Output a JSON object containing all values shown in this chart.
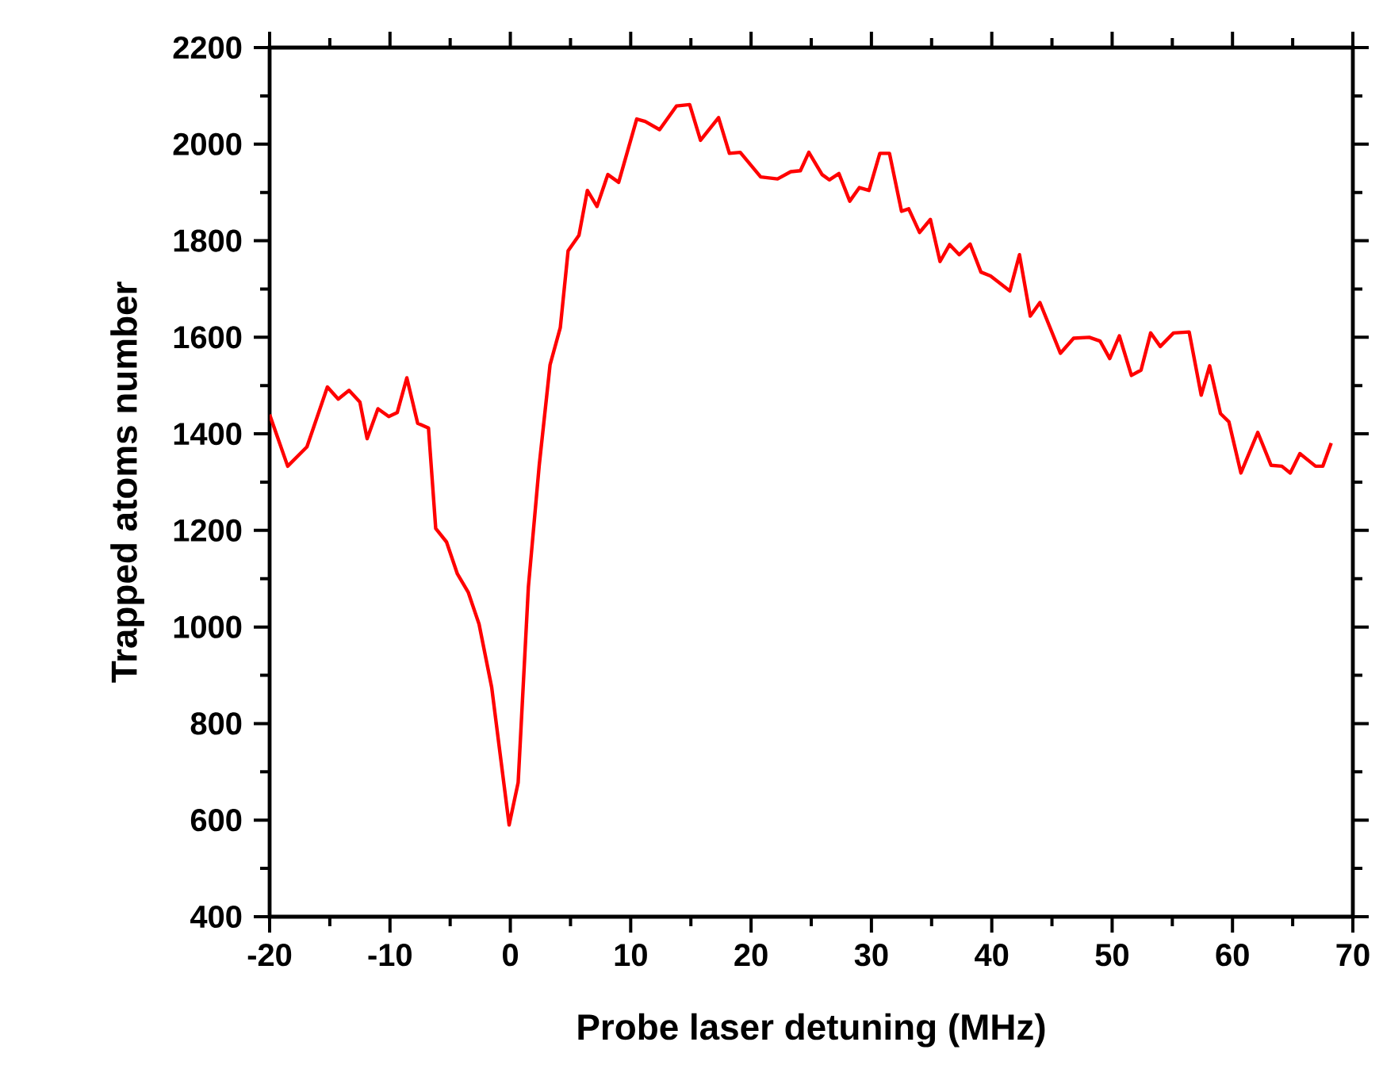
{
  "chart_data": {
    "type": "line",
    "xlabel": "Probe laser detuning (MHz)",
    "ylabel": "Trapped atoms number",
    "x": [
      -20,
      -18.5,
      -16.9,
      -15.2,
      -14.3,
      -13.4,
      -12.5,
      -11.9,
      -11,
      -10.1,
      -9.4,
      -8.6,
      -7.7,
      -6.8,
      -6.2,
      -5.3,
      -4.4,
      -3.5,
      -2.6,
      -1.55,
      -0.1,
      0.65,
      1.5,
      2.4,
      3.3,
      4.15,
      4.8,
      5.7,
      6.4,
      7.2,
      8.1,
      9.0,
      10.5,
      11.2,
      12.4,
      13.8,
      14.9,
      15.8,
      17.3,
      18.2,
      19.1,
      20.8,
      22.2,
      23.3,
      24.1,
      24.8,
      25.9,
      26.5,
      27.3,
      28.2,
      29.0,
      29.8,
      30.7,
      31.5,
      32.5,
      33.1,
      34.0,
      34.9,
      35.7,
      36.5,
      37.3,
      38.2,
      39.1,
      39.9,
      41.5,
      42.3,
      43.2,
      44.0,
      45.7,
      46.8,
      48.1,
      49.0,
      49.8,
      50.6,
      51.6,
      52.4,
      53.2,
      54.0,
      55.1,
      56.4,
      57.4,
      58.1,
      59.0,
      59.7,
      60.7,
      62.1,
      63.2,
      64.1,
      64.8,
      65.6,
      66.9,
      67.5,
      68.2
    ],
    "series": [
      {
        "color": "#ff0000",
        "values": [
          1440,
          1333,
          1373,
          1497,
          1472,
          1490,
          1466,
          1390,
          1452,
          1436,
          1444,
          1516,
          1422,
          1412,
          1204,
          1176,
          1110,
          1072,
          1006,
          875,
          590,
          678,
          1083,
          1335,
          1543,
          1620,
          1779,
          1811,
          1904,
          1871,
          1937,
          1921,
          2052,
          2047,
          2030,
          2079,
          2082,
          2008,
          2055,
          1981,
          1983,
          1932,
          1928,
          1943,
          1945,
          1983,
          1937,
          1926,
          1939,
          1882,
          1910,
          1904,
          1981,
          1981,
          1861,
          1866,
          1817,
          1844,
          1757,
          1792,
          1771,
          1793,
          1735,
          1727,
          1696,
          1771,
          1644,
          1672,
          1567,
          1598,
          1600,
          1592,
          1556,
          1603,
          1521,
          1532,
          1609,
          1581,
          1609,
          1611,
          1480,
          1541,
          1442,
          1425,
          1319,
          1403,
          1335,
          1333,
          1319,
          1359,
          1333,
          1333,
          1381
        ]
      }
    ],
    "xlim": [
      -20,
      70
    ],
    "ylim": [
      400,
      2200
    ],
    "xticks": [
      -20,
      -10,
      0,
      10,
      20,
      30,
      40,
      50,
      60,
      70
    ],
    "yticks": [
      400,
      600,
      800,
      1000,
      1200,
      1400,
      1600,
      1800,
      2000,
      2200
    ]
  }
}
